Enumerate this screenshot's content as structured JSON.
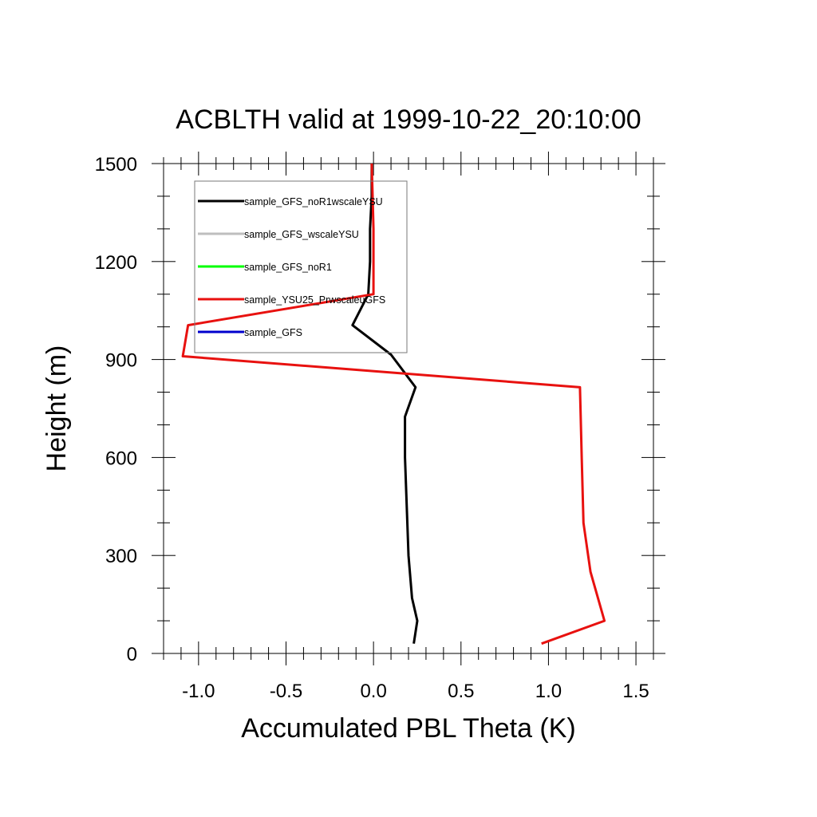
{
  "chart_data": {
    "type": "line",
    "title": "ACBLTH valid at 1999-10-22_20:10:00",
    "xlabel": "Accumulated PBL Theta (K)",
    "ylabel": "Height (m)",
    "xlim": [
      -1.2,
      1.6
    ],
    "ylim": [
      0,
      1500
    ],
    "xticks": [
      -1.0,
      -0.5,
      0.0,
      0.5,
      1.0,
      1.5
    ],
    "xtick_labels": [
      "-1.0",
      "-0.5",
      "0.0",
      "0.5",
      "1.0",
      "1.5"
    ],
    "yticks": [
      0,
      300,
      600,
      900,
      1200,
      1500
    ],
    "ytick_labels": [
      "0",
      "300",
      "600",
      "900",
      "1200",
      "1500"
    ],
    "grid": false,
    "legend_placement": "top-left",
    "series": [
      {
        "name": "sample_GFS_noR1wscaleYSU",
        "color": "#000000",
        "points": [
          [
            0.23,
            30
          ],
          [
            0.25,
            100
          ],
          [
            0.22,
            170
          ],
          [
            0.2,
            300
          ],
          [
            0.19,
            450
          ],
          [
            0.18,
            600
          ],
          [
            0.18,
            725
          ],
          [
            0.24,
            815
          ],
          [
            0.1,
            915
          ],
          [
            -0.12,
            1005
          ],
          [
            -0.03,
            1100
          ],
          [
            -0.02,
            1200
          ],
          [
            -0.02,
            1300
          ],
          [
            -0.01,
            1400
          ],
          [
            -0.01,
            1500
          ]
        ]
      },
      {
        "name": "sample_GFS_wscaleYSU",
        "color": "#bebebe",
        "points": []
      },
      {
        "name": "sample_GFS_noR1",
        "color": "#00ff00",
        "points": []
      },
      {
        "name": "sample_YSU25_PrwscaleuGFS",
        "color": "#e8110f",
        "points": [
          [
            0.96,
            30
          ],
          [
            1.32,
            100
          ],
          [
            1.24,
            250
          ],
          [
            1.2,
            400
          ],
          [
            1.19,
            600
          ],
          [
            1.18,
            815
          ],
          [
            -1.09,
            910
          ],
          [
            -1.06,
            1005
          ],
          [
            0.0,
            1100
          ],
          [
            0.0,
            1200
          ],
          [
            0.0,
            1300
          ],
          [
            -0.01,
            1500
          ]
        ]
      },
      {
        "name": "sample_GFS",
        "color": "#0000cd",
        "points": []
      }
    ]
  }
}
